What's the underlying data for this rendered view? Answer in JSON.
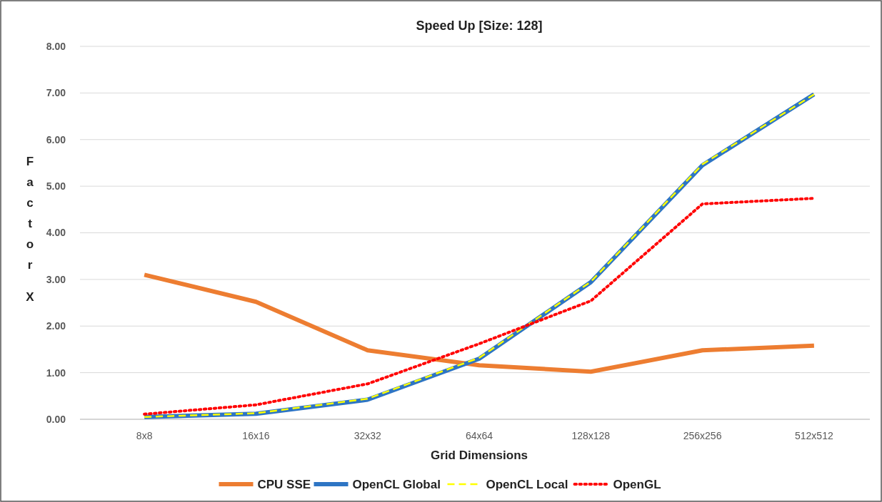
{
  "chart_data": {
    "type": "line",
    "title": "Speed Up [Size: 128]",
    "xlabel": "Grid Dimensions",
    "ylabel": "Factor X",
    "categories": [
      "8x8",
      "16x16",
      "32x32",
      "64x64",
      "128x128",
      "256x256",
      "512x512"
    ],
    "ylim": [
      0,
      8
    ],
    "yticks": [
      {
        "value": 0,
        "label": "0.00"
      },
      {
        "value": 1,
        "label": "1.00"
      },
      {
        "value": 2,
        "label": "2.00"
      },
      {
        "value": 3,
        "label": "3.00"
      },
      {
        "value": 4,
        "label": "4.00"
      },
      {
        "value": 5,
        "label": "5.00"
      },
      {
        "value": 6,
        "label": "6.00"
      },
      {
        "value": 7,
        "label": "7.00"
      },
      {
        "value": 8,
        "label": "8.00"
      }
    ],
    "grid": "y",
    "legend": "bottom",
    "marker": "none",
    "series": [
      {
        "name": "CPU SSE",
        "color": "#ed7d31",
        "line_style": "solid",
        "values": [
          3.1,
          2.52,
          1.48,
          1.16,
          1.02,
          1.48,
          1.58
        ]
      },
      {
        "name": "OpenCL Global",
        "color": "#2e75c4",
        "line_style": "solid",
        "values": [
          0.05,
          0.12,
          0.42,
          1.3,
          2.94,
          5.45,
          6.97
        ]
      },
      {
        "name": "OpenCL Local",
        "color": "#ffff00",
        "line_style": "dashed",
        "values": [
          0.05,
          0.13,
          0.44,
          1.32,
          2.95,
          5.47,
          6.97
        ]
      },
      {
        "name": "OpenGL",
        "color": "#ff0000",
        "line_style": "dotted",
        "values": [
          0.11,
          0.31,
          0.76,
          1.62,
          2.54,
          4.62,
          4.74
        ]
      }
    ]
  }
}
